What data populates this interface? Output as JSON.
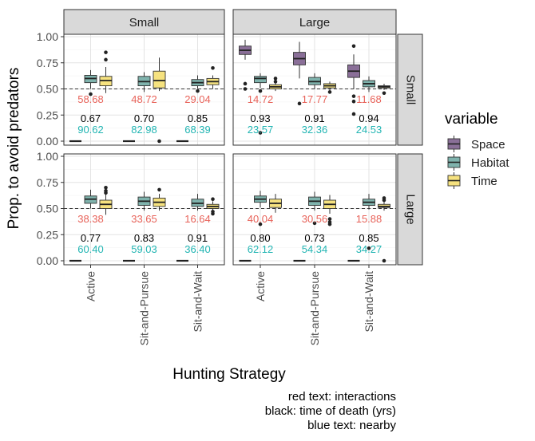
{
  "chart_data": {
    "type": "boxplot",
    "xlabel": "Hunting Strategy",
    "ylabel": "Prop. to avoid predators",
    "categories": [
      "Active",
      "Sit-and-Pursue",
      "Sit-and-Wait"
    ],
    "ylim": [
      0,
      1
    ],
    "yticks": [
      "0.00",
      "0.25",
      "0.50",
      "0.75",
      "1.00"
    ],
    "reference_line": 0.5,
    "legend": {
      "title": "variable",
      "entries": [
        {
          "name": "Space",
          "color": "#8a6f98"
        },
        {
          "name": "Habitat",
          "color": "#7fb3ad"
        },
        {
          "name": "Time",
          "color": "#f6e27f"
        }
      ]
    },
    "col_facets": [
      "Small",
      "Large"
    ],
    "row_facets": [
      "Small",
      "Large"
    ],
    "footnotes": [
      "red text: interactions",
      "black: time of death (yrs)",
      "blue text: nearby"
    ],
    "colors": {
      "red": "#e8635a",
      "black": "#000000",
      "blue": "#22b5b3"
    },
    "panels": [
      {
        "col": "Small",
        "row": "Small",
        "groups": [
          {
            "category": "Active",
            "boxes": {
              "Space": {
                "q1": 0,
                "med": 0,
                "q3": 0,
                "wlo": 0,
                "whi": 0,
                "outliers": []
              },
              "Habitat": {
                "q1": 0.56,
                "med": 0.6,
                "q3": 0.63,
                "wlo": 0.5,
                "whi": 0.68,
                "outliers": [
                  0.45
                ]
              },
              "Time": {
                "q1": 0.53,
                "med": 0.58,
                "q3": 0.62,
                "wlo": 0.46,
                "whi": 0.71,
                "outliers": [
                  0.78,
                  0.85
                ]
              }
            },
            "labels": {
              "red": "58.68",
              "black": "0.67",
              "blue": "90.62"
            }
          },
          {
            "category": "Sit-and-Pursue",
            "boxes": {
              "Space": {
                "q1": 0,
                "med": 0,
                "q3": 0,
                "wlo": 0,
                "whi": 0,
                "outliers": []
              },
              "Habitat": {
                "q1": 0.53,
                "med": 0.57,
                "q3": 0.62,
                "wlo": 0.47,
                "whi": 0.66,
                "outliers": []
              },
              "Time": {
                "q1": 0.51,
                "med": 0.58,
                "q3": 0.67,
                "wlo": 0.48,
                "whi": 0.8,
                "outliers": [
                  0.0
                ]
              }
            },
            "labels": {
              "red": "48.72",
              "black": "0.70",
              "blue": "82.98"
            }
          },
          {
            "category": "Sit-and-Wait",
            "boxes": {
              "Space": {
                "q1": 0,
                "med": 0,
                "q3": 0,
                "wlo": 0,
                "whi": 0,
                "outliers": []
              },
              "Habitat": {
                "q1": 0.53,
                "med": 0.56,
                "q3": 0.59,
                "wlo": 0.5,
                "whi": 0.63,
                "outliers": [
                  0.48
                ]
              },
              "Time": {
                "q1": 0.54,
                "med": 0.57,
                "q3": 0.6,
                "wlo": 0.5,
                "whi": 0.63,
                "outliers": [
                  0.7
                ]
              }
            },
            "labels": {
              "red": "29.04",
              "black": "0.85",
              "blue": "68.39"
            }
          }
        ]
      },
      {
        "col": "Large",
        "row": "Small",
        "groups": [
          {
            "category": "Active",
            "boxes": {
              "Space": {
                "q1": 0.83,
                "med": 0.87,
                "q3": 0.91,
                "wlo": 0.78,
                "whi": 0.97,
                "outliers": [
                  0.55,
                  0.5
                ]
              },
              "Habitat": {
                "q1": 0.56,
                "med": 0.6,
                "q3": 0.62,
                "wlo": 0.51,
                "whi": 0.65,
                "outliers": [
                  0.48,
                  0.08
                ]
              },
              "Time": {
                "q1": 0.5,
                "med": 0.52,
                "q3": 0.54,
                "wlo": 0.48,
                "whi": 0.58,
                "outliers": [
                  0.6,
                  0.57
                ]
              }
            },
            "labels": {
              "red": "14.72",
              "black": "0.93",
              "blue": "23.57"
            }
          },
          {
            "category": "Sit-and-Pursue",
            "boxes": {
              "Space": {
                "q1": 0.73,
                "med": 0.79,
                "q3": 0.85,
                "wlo": 0.6,
                "whi": 0.95,
                "outliers": [
                  0.36
                ]
              },
              "Habitat": {
                "q1": 0.54,
                "med": 0.57,
                "q3": 0.61,
                "wlo": 0.5,
                "whi": 0.65,
                "outliers": []
              },
              "Time": {
                "q1": 0.51,
                "med": 0.53,
                "q3": 0.55,
                "wlo": 0.48,
                "whi": 0.57,
                "outliers": [
                  0.47
                ]
              }
            },
            "labels": {
              "red": "17.77",
              "black": "0.91",
              "blue": "32.36"
            }
          },
          {
            "category": "Sit-and-Wait",
            "boxes": {
              "Space": {
                "q1": 0.61,
                "med": 0.67,
                "q3": 0.73,
                "wlo": 0.5,
                "whi": 0.83,
                "outliers": [
                  0.91,
                  0.43,
                  0.38,
                  0.26
                ]
              },
              "Habitat": {
                "q1": 0.52,
                "med": 0.55,
                "q3": 0.58,
                "wlo": 0.47,
                "whi": 0.62,
                "outliers": []
              },
              "Time": {
                "q1": 0.51,
                "med": 0.52,
                "q3": 0.53,
                "wlo": 0.49,
                "whi": 0.55,
                "outliers": [
                  0.46
                ]
              }
            },
            "labels": {
              "red": "11.68",
              "black": "0.94",
              "blue": "24.53"
            }
          }
        ]
      },
      {
        "col": "Small",
        "row": "Large",
        "groups": [
          {
            "category": "Active",
            "boxes": {
              "Space": {
                "q1": 0,
                "med": 0,
                "q3": 0,
                "wlo": 0,
                "whi": 0,
                "outliers": []
              },
              "Habitat": {
                "q1": 0.55,
                "med": 0.59,
                "q3": 0.62,
                "wlo": 0.5,
                "whi": 0.68,
                "outliers": []
              },
              "Time": {
                "q1": 0.5,
                "med": 0.54,
                "q3": 0.58,
                "wlo": 0.44,
                "whi": 0.64,
                "outliers": [
                  0.7,
                  0.67,
                  0.65
                ]
              }
            },
            "labels": {
              "red": "38.38",
              "black": "0.77",
              "blue": "60.40"
            }
          },
          {
            "category": "Sit-and-Pursue",
            "boxes": {
              "Space": {
                "q1": 0,
                "med": 0,
                "q3": 0,
                "wlo": 0,
                "whi": 0,
                "outliers": []
              },
              "Habitat": {
                "q1": 0.53,
                "med": 0.57,
                "q3": 0.61,
                "wlo": 0.48,
                "whi": 0.66,
                "outliers": []
              },
              "Time": {
                "q1": 0.52,
                "med": 0.56,
                "q3": 0.6,
                "wlo": 0.48,
                "whi": 0.64,
                "outliers": [
                  0.68
                ]
              }
            },
            "labels": {
              "red": "33.65",
              "black": "0.83",
              "blue": "59.03"
            }
          },
          {
            "category": "Sit-and-Wait",
            "boxes": {
              "Space": {
                "q1": 0,
                "med": 0,
                "q3": 0,
                "wlo": 0,
                "whi": 0,
                "outliers": []
              },
              "Habitat": {
                "q1": 0.52,
                "med": 0.55,
                "q3": 0.59,
                "wlo": 0.48,
                "whi": 0.64,
                "outliers": []
              },
              "Time": {
                "q1": 0.5,
                "med": 0.52,
                "q3": 0.54,
                "wlo": 0.47,
                "whi": 0.57,
                "outliers": [
                  0.59,
                  0.47,
                  0.45
                ]
              }
            },
            "labels": {
              "red": "16.64",
              "black": "0.91",
              "blue": "36.40"
            }
          }
        ]
      },
      {
        "col": "Large",
        "row": "Large",
        "groups": [
          {
            "category": "Active",
            "boxes": {
              "Space": {
                "q1": 0,
                "med": 0,
                "q3": 0,
                "wlo": 0,
                "whi": 0,
                "outliers": []
              },
              "Habitat": {
                "q1": 0.56,
                "med": 0.59,
                "q3": 0.62,
                "wlo": 0.51,
                "whi": 0.67,
                "outliers": [
                  0.35
                ]
              },
              "Time": {
                "q1": 0.51,
                "med": 0.55,
                "q3": 0.59,
                "wlo": 0.46,
                "whi": 0.64,
                "outliers": []
              }
            },
            "labels": {
              "red": "40.04",
              "black": "0.80",
              "blue": "62.12"
            }
          },
          {
            "category": "Sit-and-Pursue",
            "boxes": {
              "Space": {
                "q1": 0,
                "med": 0,
                "q3": 0,
                "wlo": 0,
                "whi": 0,
                "outliers": []
              },
              "Habitat": {
                "q1": 0.53,
                "med": 0.57,
                "q3": 0.61,
                "wlo": 0.48,
                "whi": 0.66,
                "outliers": [
                  0.36
                ]
              },
              "Time": {
                "q1": 0.5,
                "med": 0.54,
                "q3": 0.58,
                "wlo": 0.45,
                "whi": 0.63,
                "outliers": [
                  0.4,
                  0.37,
                  0.35
                ]
              }
            },
            "labels": {
              "red": "30.56",
              "black": "0.73",
              "blue": "54.34"
            }
          },
          {
            "category": "Sit-and-Wait",
            "boxes": {
              "Space": {
                "q1": 0,
                "med": 0,
                "q3": 0,
                "wlo": 0,
                "whi": 0,
                "outliers": []
              },
              "Habitat": {
                "q1": 0.53,
                "med": 0.56,
                "q3": 0.59,
                "wlo": 0.49,
                "whi": 0.64,
                "outliers": [
                  0.12
                ]
              },
              "Time": {
                "q1": 0.51,
                "med": 0.52,
                "q3": 0.54,
                "wlo": 0.48,
                "whi": 0.57,
                "outliers": [
                  0.6,
                  0.58,
                  0.0
                ]
              }
            },
            "labels": {
              "red": "15.88",
              "black": "0.85",
              "blue": "34.27"
            }
          }
        ]
      }
    ]
  }
}
